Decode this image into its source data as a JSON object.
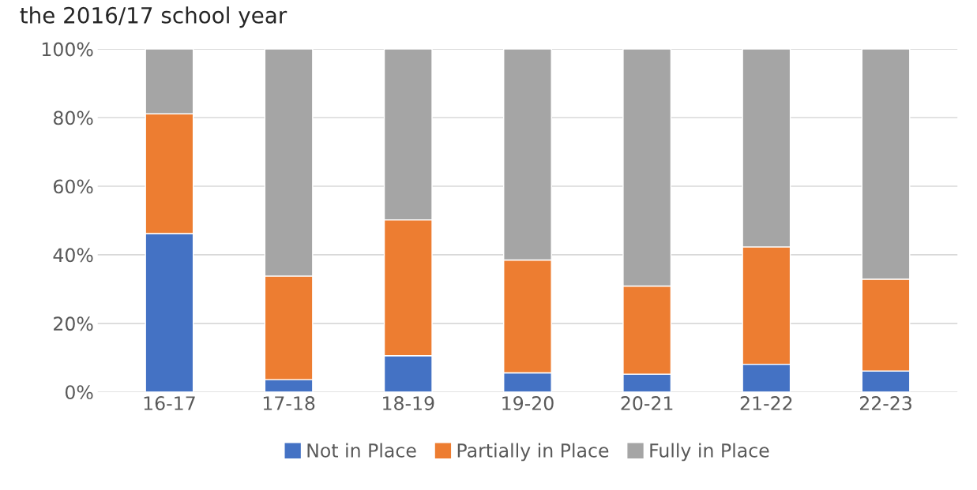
{
  "chart_data": {
    "type": "bar",
    "title": "the 2016/17 school year",
    "stacked": true,
    "categories": [
      "16-17",
      "17-18",
      "18-19",
      "19-20",
      "20-21",
      "21-22",
      "22-23"
    ],
    "series": [
      {
        "name": "Not in Place",
        "color": "#4472c4",
        "values": [
          46.2,
          3.6,
          10.6,
          5.6,
          5.2,
          8.1,
          6.1
        ]
      },
      {
        "name": "Partially in Place",
        "color": "#ed7d31",
        "values": [
          34.9,
          30.2,
          39.6,
          32.9,
          25.7,
          34.2,
          26.8
        ]
      },
      {
        "name": "Fully in Place",
        "color": "#a5a5a5",
        "values": [
          18.9,
          66.2,
          49.8,
          61.5,
          69.1,
          57.7,
          67.1
        ]
      }
    ],
    "ylim": [
      0,
      100
    ],
    "yticks": [
      {
        "value": 0,
        "label": "0%"
      },
      {
        "value": 20,
        "label": "20%"
      },
      {
        "value": 40,
        "label": "40%"
      },
      {
        "value": 60,
        "label": "60%"
      },
      {
        "value": 80,
        "label": "80%"
      },
      {
        "value": 100,
        "label": "100%"
      }
    ],
    "grid": "y",
    "legend": "bottom"
  }
}
